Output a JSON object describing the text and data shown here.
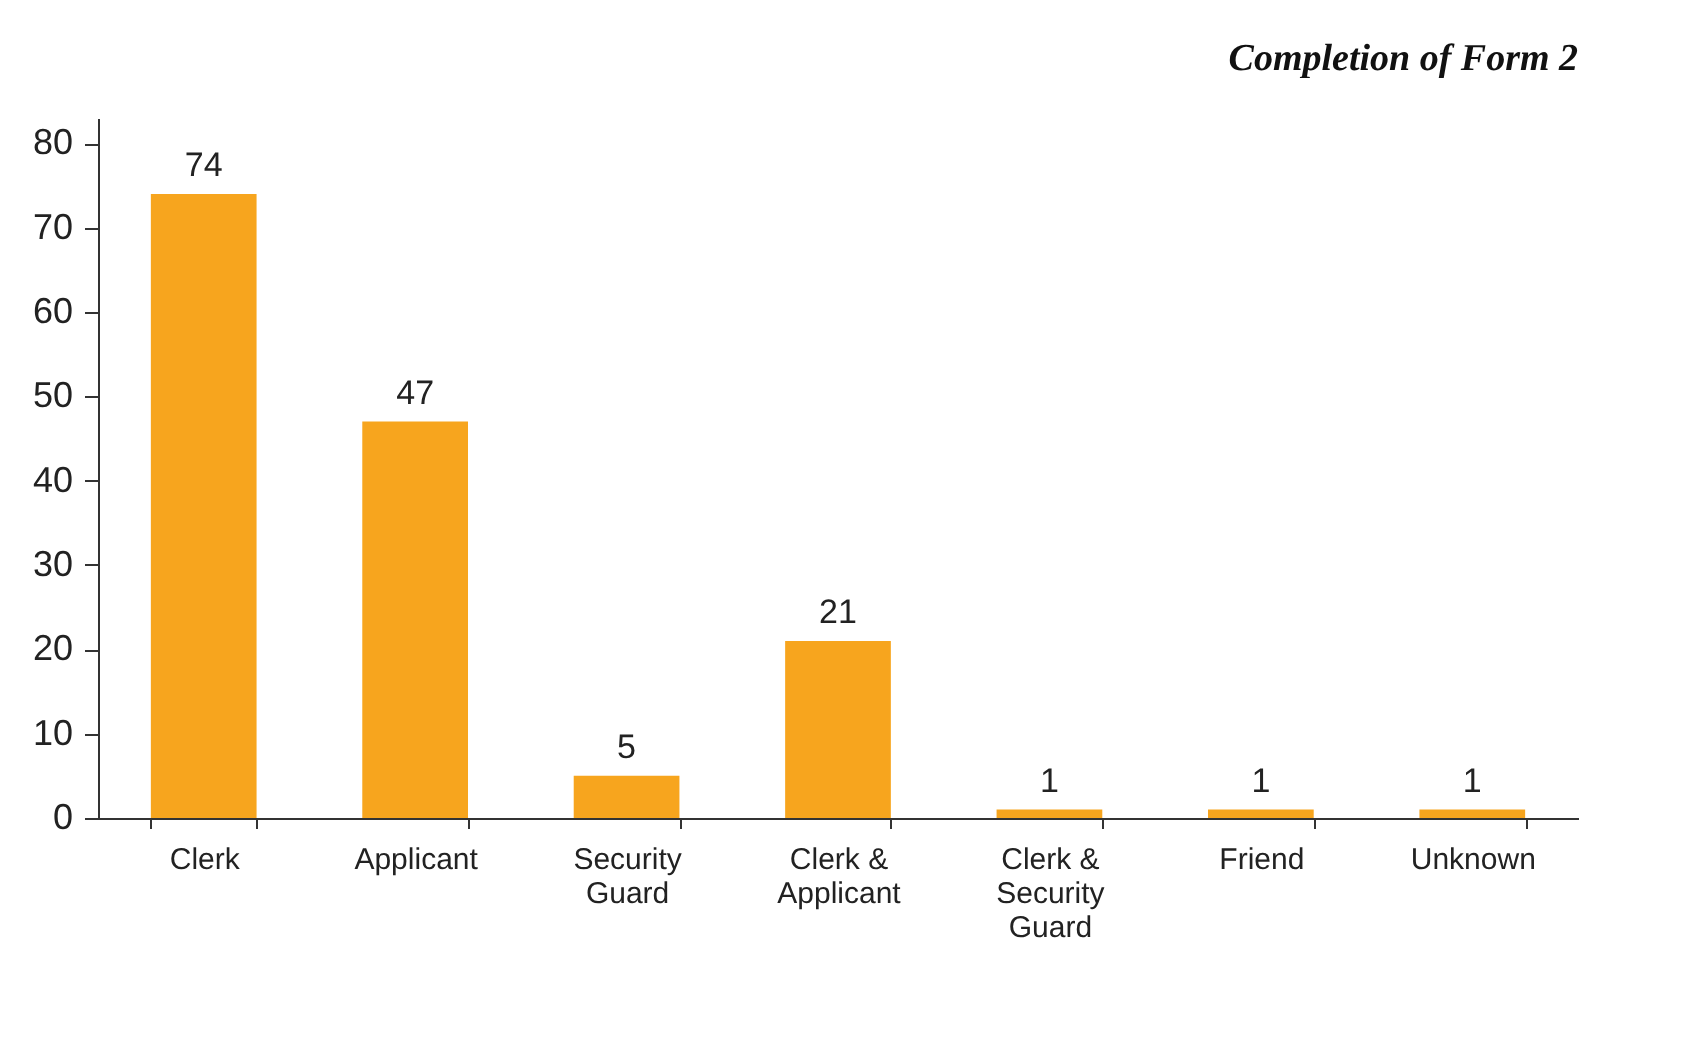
{
  "chart_data": {
    "type": "bar",
    "title": "Completion of Form 2",
    "categories": [
      "Clerk",
      "Applicant",
      "Security Guard",
      "Clerk & Applicant",
      "Clerk & Security Guard",
      "Friend",
      "Unknown"
    ],
    "values": [
      74,
      47,
      5,
      21,
      1,
      1,
      1
    ],
    "color": "#f7a51e",
    "ylim": [
      0,
      83
    ],
    "yticks": [
      0,
      10,
      20,
      30,
      40,
      50,
      60,
      70,
      80
    ],
    "data_labels": true
  }
}
